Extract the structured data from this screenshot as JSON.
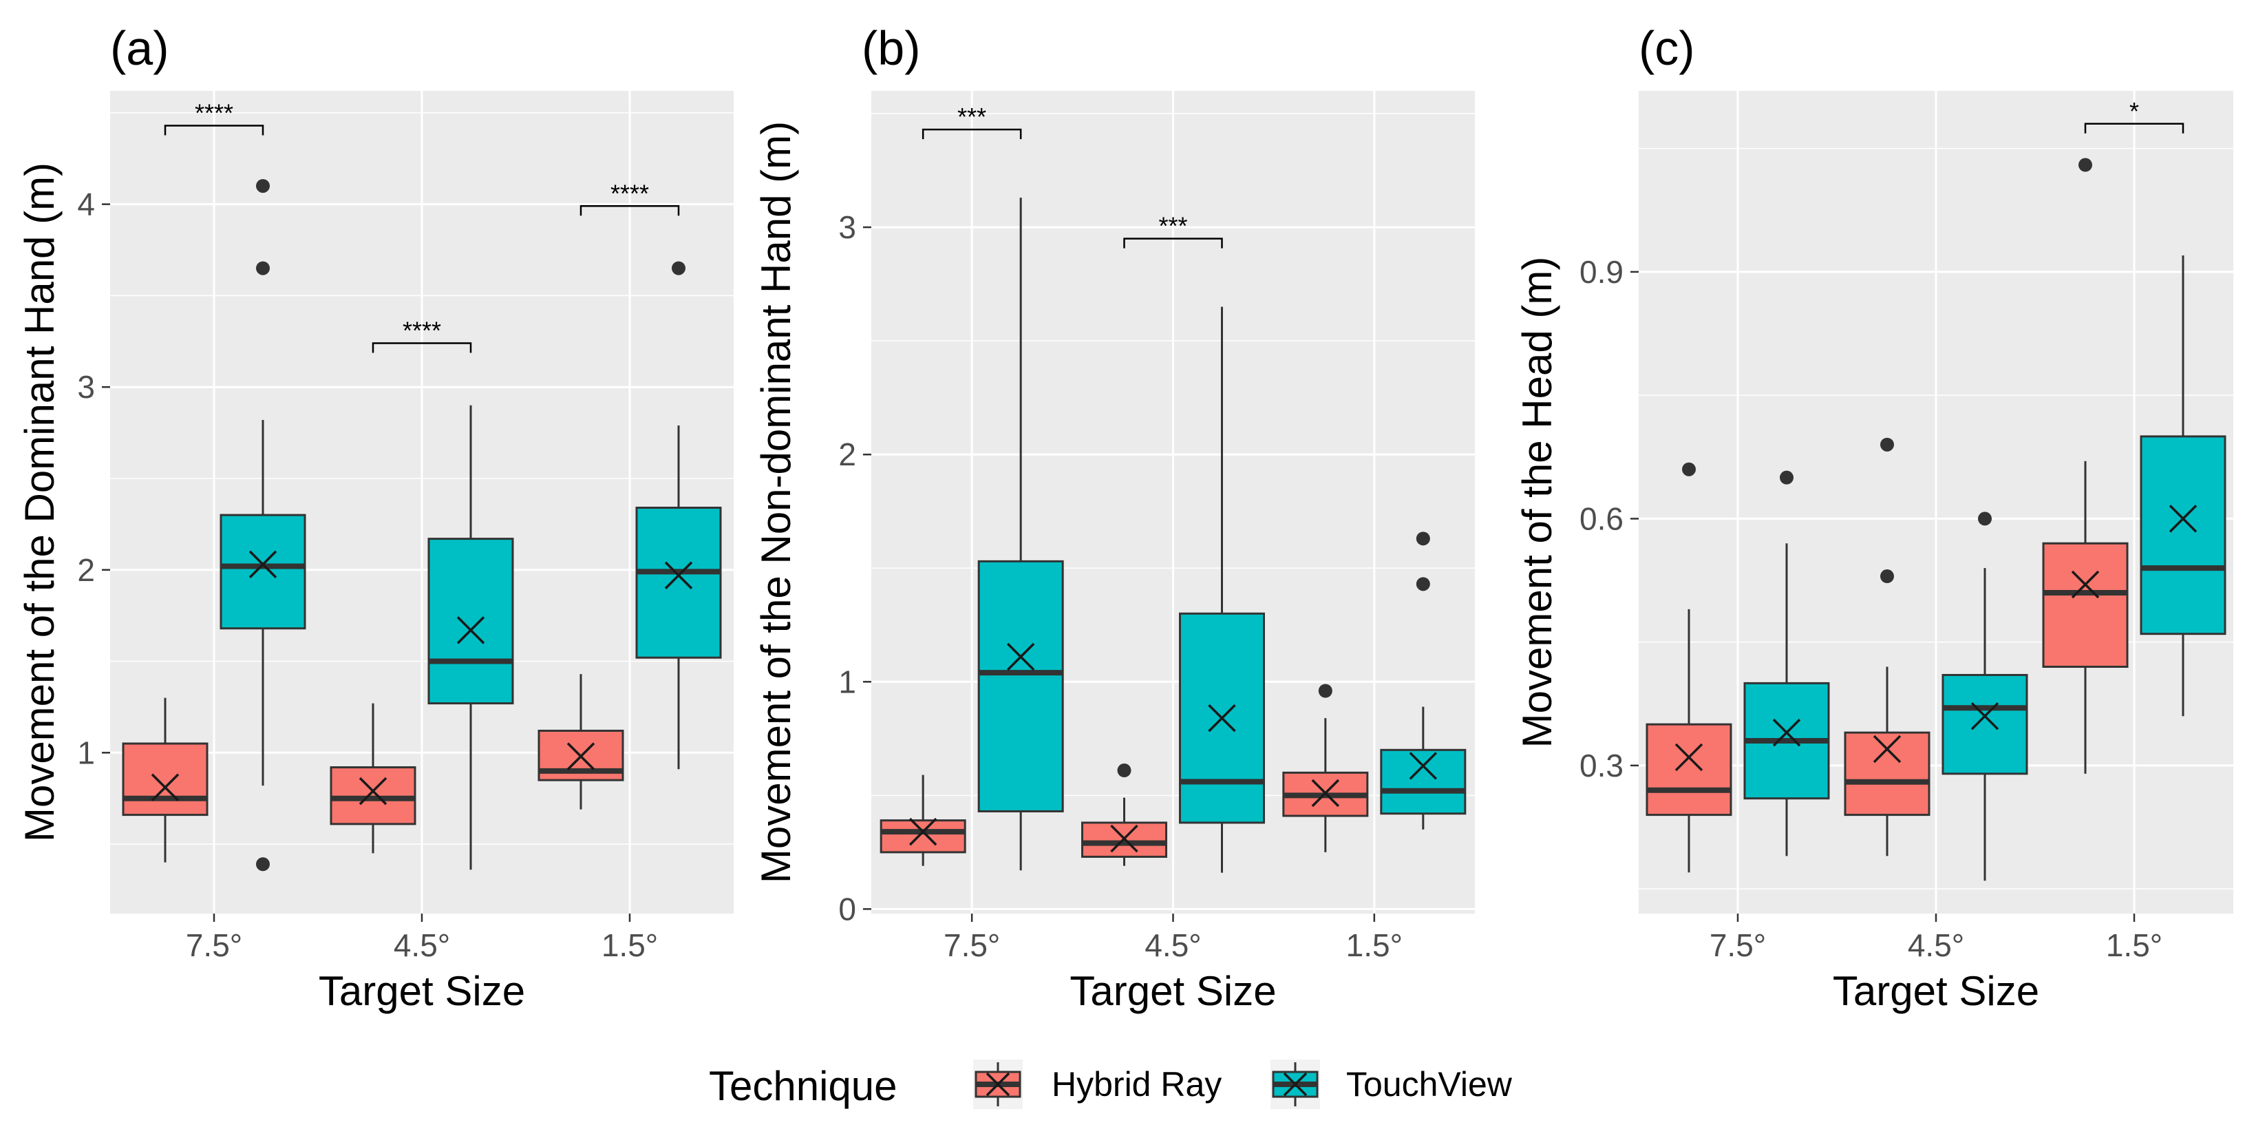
{
  "legend": {
    "title": "Technique",
    "entries": [
      {
        "label": "Hybrid Ray",
        "color": "#f8766d"
      },
      {
        "label": "TouchView",
        "color": "#00bfc4"
      }
    ]
  },
  "chart_data": [
    {
      "panel": "(a)",
      "type": "boxplot",
      "xlabel": "Target Size",
      "ylabel": "Movement of the Dominant Hand (m)",
      "categories": [
        "7.5°",
        "4.5°",
        "1.5°"
      ],
      "ylim": [
        0.12,
        4.62
      ],
      "yticks": [
        1,
        2,
        3,
        4
      ],
      "series": [
        {
          "name": "Hybrid Ray",
          "boxes": [
            {
              "min": 0.4,
              "q1": 0.66,
              "median": 0.75,
              "q3": 1.05,
              "max": 1.3,
              "mean": 0.81,
              "outliers": []
            },
            {
              "min": 0.45,
              "q1": 0.61,
              "median": 0.75,
              "q3": 0.92,
              "max": 1.27,
              "mean": 0.79,
              "outliers": []
            },
            {
              "min": 0.69,
              "q1": 0.85,
              "median": 0.9,
              "q3": 1.12,
              "max": 1.43,
              "mean": 0.98,
              "outliers": []
            }
          ]
        },
        {
          "name": "TouchView",
          "boxes": [
            {
              "min": 0.82,
              "q1": 1.68,
              "median": 2.02,
              "q3": 2.3,
              "max": 2.82,
              "mean": 2.03,
              "outliers": [
                4.1,
                3.65,
                0.39
              ]
            },
            {
              "min": 0.36,
              "q1": 1.27,
              "median": 1.5,
              "q3": 2.17,
              "max": 2.9,
              "mean": 1.67,
              "outliers": []
            },
            {
              "min": 0.91,
              "q1": 1.52,
              "median": 1.99,
              "q3": 2.34,
              "max": 2.79,
              "mean": 1.97,
              "outliers": [
                3.65
              ]
            }
          ]
        }
      ],
      "significance": [
        {
          "category": "7.5°",
          "label": "****",
          "y": 4.43
        },
        {
          "category": "4.5°",
          "label": "****",
          "y": 3.24
        },
        {
          "category": "1.5°",
          "label": "****",
          "y": 3.99
        }
      ]
    },
    {
      "panel": "(b)",
      "type": "boxplot",
      "xlabel": "Target Size",
      "ylabel": "Movement of the Non-dominant Hand (m)",
      "categories": [
        "7.5°",
        "4.5°",
        "1.5°"
      ],
      "ylim": [
        -0.02,
        3.6
      ],
      "yticks": [
        0,
        1,
        2,
        3
      ],
      "series": [
        {
          "name": "Hybrid Ray",
          "boxes": [
            {
              "min": 0.19,
              "q1": 0.25,
              "median": 0.34,
              "q3": 0.39,
              "max": 0.59,
              "mean": 0.34,
              "outliers": []
            },
            {
              "min": 0.19,
              "q1": 0.23,
              "median": 0.29,
              "q3": 0.38,
              "max": 0.49,
              "mean": 0.31,
              "outliers": [
                0.61
              ]
            },
            {
              "min": 0.25,
              "q1": 0.41,
              "median": 0.5,
              "q3": 0.6,
              "max": 0.84,
              "mean": 0.51,
              "outliers": [
                0.96
              ]
            }
          ]
        },
        {
          "name": "TouchView",
          "boxes": [
            {
              "min": 0.17,
              "q1": 0.43,
              "median": 1.04,
              "q3": 1.53,
              "max": 3.13,
              "mean": 1.11,
              "outliers": []
            },
            {
              "min": 0.16,
              "q1": 0.38,
              "median": 0.56,
              "q3": 1.3,
              "max": 2.65,
              "mean": 0.84,
              "outliers": []
            },
            {
              "min": 0.35,
              "q1": 0.42,
              "median": 0.52,
              "q3": 0.7,
              "max": 0.89,
              "mean": 0.63,
              "outliers": [
                1.63,
                1.43
              ]
            }
          ]
        }
      ],
      "significance": [
        {
          "category": "7.5°",
          "label": "***",
          "y": 3.43
        },
        {
          "category": "4.5°",
          "label": "***",
          "y": 2.95
        }
      ]
    },
    {
      "panel": "(c)",
      "type": "boxplot",
      "xlabel": "Target Size",
      "ylabel": "Movement of the Head (m)",
      "categories": [
        "7.5°",
        "4.5°",
        "1.5°"
      ],
      "ylim": [
        0.12,
        1.12
      ],
      "yticks": [
        0.3,
        0.6,
        0.9
      ],
      "ytick_labels": [
        "0.3",
        "0.6",
        "0.9"
      ],
      "series": [
        {
          "name": "Hybrid Ray",
          "boxes": [
            {
              "min": 0.17,
              "q1": 0.24,
              "median": 0.27,
              "q3": 0.35,
              "max": 0.49,
              "mean": 0.31,
              "outliers": [
                0.66
              ]
            },
            {
              "min": 0.19,
              "q1": 0.24,
              "median": 0.28,
              "q3": 0.34,
              "max": 0.42,
              "mean": 0.32,
              "outliers": [
                0.69,
                0.53
              ]
            },
            {
              "min": 0.29,
              "q1": 0.42,
              "median": 0.51,
              "q3": 0.57,
              "max": 0.67,
              "mean": 0.52,
              "outliers": [
                1.03
              ]
            }
          ]
        },
        {
          "name": "TouchView",
          "boxes": [
            {
              "min": 0.19,
              "q1": 0.26,
              "median": 0.33,
              "q3": 0.4,
              "max": 0.57,
              "mean": 0.34,
              "outliers": [
                0.65
              ]
            },
            {
              "min": 0.16,
              "q1": 0.29,
              "median": 0.37,
              "q3": 0.41,
              "max": 0.54,
              "mean": 0.36,
              "outliers": [
                0.6
              ]
            },
            {
              "min": 0.36,
              "q1": 0.46,
              "median": 0.54,
              "q3": 0.7,
              "max": 0.92,
              "mean": 0.6,
              "outliers": []
            }
          ]
        }
      ],
      "significance": [
        {
          "category": "1.5°",
          "label": "*",
          "y": 1.08
        }
      ]
    }
  ]
}
